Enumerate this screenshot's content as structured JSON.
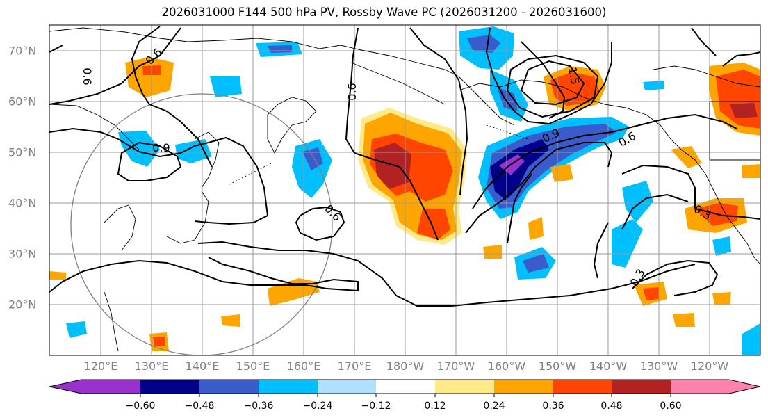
{
  "title": "2026031000 F144 500 hPa PV, Rossby Wave PC (2026031200 - 2026031600)",
  "lon_labels": [
    "120°E",
    "130°E",
    "140°E",
    "150°E",
    "160°E",
    "170°E",
    "180°W",
    "170°W",
    "160°W",
    "150°W",
    "140°W",
    "130°W",
    "120°W"
  ],
  "lat_labels": [
    "70°N",
    "60°N",
    "50°N",
    "40°N",
    "30°N",
    "20°N"
  ],
  "contour_labels": [
    "0.6",
    "0.6",
    "0.9",
    "0.9",
    "0.6",
    "0.6",
    "1.5",
    "0.3",
    "0.3",
    "0.6"
  ],
  "colorbar": {
    "ticks": [
      "−0.60",
      "−0.48",
      "−0.36",
      "−0.24",
      "−0.12",
      "0.12",
      "0.24",
      "0.36",
      "0.48",
      "0.60"
    ],
    "colors": [
      "#9932CC",
      "#00008B",
      "#3A5BCC",
      "#00BFFF",
      "#B0E0FF",
      "#FFFFFF",
      "#FFEA8A",
      "#FFA500",
      "#FF4500",
      "#B22222",
      "#FF82AB"
    ]
  }
}
